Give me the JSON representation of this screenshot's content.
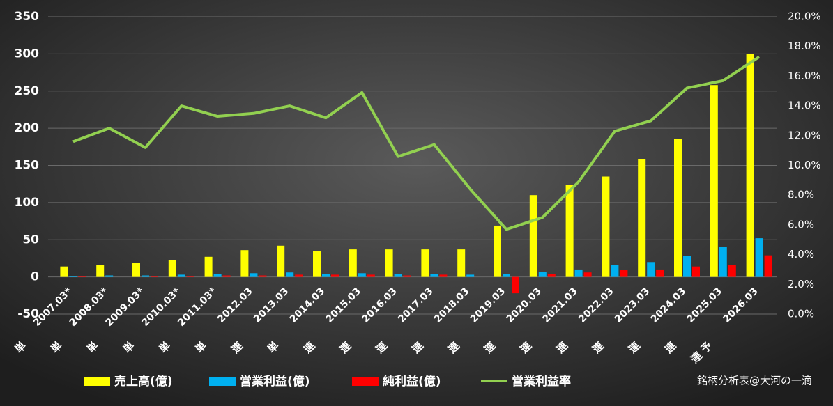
{
  "chart_data": {
    "type": "bar_line",
    "categories": [
      "2007.03*",
      "2008.03*",
      "2009.03*",
      "2010.03*",
      "2011.03*",
      "2012.03",
      "2013.03",
      "2014.03",
      "2015.03",
      "2016.03",
      "2017.03",
      "2018.03",
      "2019.03",
      "2020.03",
      "2021.03",
      "2022.03",
      "2023.03",
      "2024.03",
      "2025.03",
      "2026.03"
    ],
    "category_groups": [
      "単",
      "単",
      "単",
      "単",
      "単",
      "単",
      "連",
      "単",
      "連",
      "連",
      "連",
      "連",
      "連",
      "連",
      "連",
      "連",
      "連",
      "連",
      "連",
      "連 予"
    ],
    "series": [
      {
        "name": "売上高(億)",
        "color": "#ffff00",
        "values": [
          14,
          16,
          19,
          23,
          27,
          36,
          42,
          35,
          37,
          37,
          37,
          37,
          69,
          110,
          124,
          135,
          158,
          186,
          258,
          300
        ]
      },
      {
        "name": "営業利益(億)",
        "color": "#00b0f0",
        "values": [
          1,
          2,
          2,
          3,
          4,
          5,
          6,
          4,
          5,
          4,
          4,
          3,
          4,
          7,
          10,
          16,
          20,
          28,
          40,
          52
        ]
      },
      {
        "name": "純利益(億)",
        "color": "#ff0000",
        "values": [
          1,
          0,
          1,
          1,
          2,
          2,
          3,
          3,
          3,
          2,
          3,
          0,
          -22,
          4,
          6,
          9,
          10,
          14,
          16,
          29
        ]
      },
      {
        "name": "営業利益率",
        "color": "#92d050",
        "axis": "y2",
        "values": [
          11.6,
          12.5,
          11.2,
          14.0,
          13.3,
          13.5,
          14.0,
          13.2,
          14.9,
          10.6,
          11.4,
          8.4,
          5.7,
          6.5,
          8.9,
          12.3,
          13.0,
          15.2,
          15.7,
          17.3
        ]
      }
    ],
    "ylim": [
      -50,
      350
    ],
    "yticks": [
      -50,
      0,
      50,
      100,
      150,
      200,
      250,
      300,
      350
    ],
    "y2lim": [
      0,
      20
    ],
    "y2ticks": [
      {
        "value": 0,
        "label": "0.0%"
      },
      {
        "value": 2,
        "label": "2.0%"
      },
      {
        "value": 4,
        "label": "4.0%"
      },
      {
        "value": 6,
        "label": "6.0%"
      },
      {
        "value": 8,
        "label": "8.0%"
      },
      {
        "value": 10,
        "label": "10.0%"
      },
      {
        "value": 12,
        "label": "12.0%"
      },
      {
        "value": 14,
        "label": "14.0%"
      },
      {
        "value": 16,
        "label": "16.0%"
      },
      {
        "value": 18,
        "label": "18.0%"
      },
      {
        "value": 20,
        "label": "20.0%"
      }
    ],
    "grid": true,
    "legend": "bottom",
    "annotation": "銘柄分析表@大河の一滴"
  }
}
